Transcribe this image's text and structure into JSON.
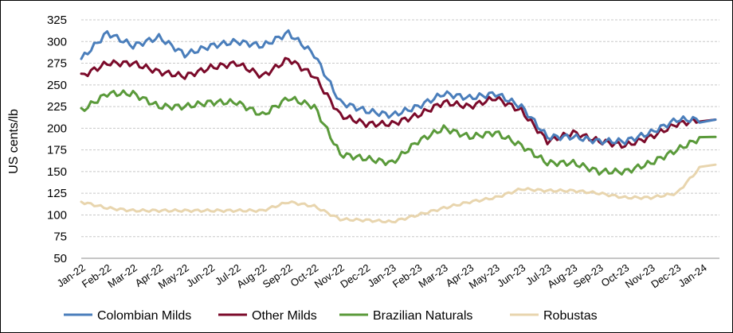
{
  "chart_data": {
    "type": "line",
    "title": "",
    "xlabel": "",
    "ylabel": "US cents/lb",
    "ylim": [
      50,
      325
    ],
    "yticks": [
      50,
      75,
      100,
      125,
      150,
      175,
      200,
      225,
      250,
      275,
      300,
      325
    ],
    "grid": "horizontal",
    "legend_position": "bottom",
    "x_start": "Jan-22",
    "x_end": "Feb-24",
    "categories": [
      "Jan-22",
      "Feb-22",
      "Mar-22",
      "Apr-22",
      "May-22",
      "Jun-22",
      "Jul-22",
      "Aug-22",
      "Sep-22",
      "Oct-22",
      "Nov-22",
      "Dec-22",
      "Jan-23",
      "Feb-23",
      "Mar-23",
      "Apr-23",
      "May-23",
      "Jun-23",
      "Jul-23",
      "Aug-23",
      "Sep-23",
      "Oct-23",
      "Nov-23",
      "Dec-23",
      "Jan-24"
    ],
    "colors": {
      "Colombian Milds": "#4a7ebb",
      "Other Milds": "#7b0a2a",
      "Brazilian Naturals": "#5a9a3a",
      "Robustas": "#e8d5ae"
    },
    "series": [
      {
        "name": "Colombian Milds",
        "values": [
          280,
          310,
          295,
          305,
          285,
          295,
          300,
          295,
          310,
          285,
          230,
          220,
          215,
          225,
          240,
          235,
          240,
          225,
          190,
          190,
          185,
          185,
          195,
          210,
          210
        ]
      },
      {
        "name": "Other Milds",
        "values": [
          260,
          275,
          275,
          265,
          260,
          270,
          275,
          260,
          280,
          260,
          215,
          205,
          205,
          215,
          230,
          225,
          235,
          220,
          185,
          195,
          185,
          180,
          190,
          205,
          210
        ]
      },
      {
        "name": "Brazilian Naturals",
        "values": [
          220,
          240,
          240,
          225,
          225,
          230,
          230,
          215,
          235,
          225,
          170,
          165,
          160,
          185,
          200,
          190,
          195,
          180,
          160,
          160,
          150,
          150,
          160,
          175,
          190
        ]
      },
      {
        "name": "Robustas",
        "values": [
          115,
          108,
          105,
          105,
          105,
          105,
          105,
          105,
          115,
          110,
          95,
          94,
          92,
          100,
          108,
          115,
          120,
          130,
          128,
          128,
          125,
          120,
          120,
          125,
          158
        ]
      }
    ]
  }
}
